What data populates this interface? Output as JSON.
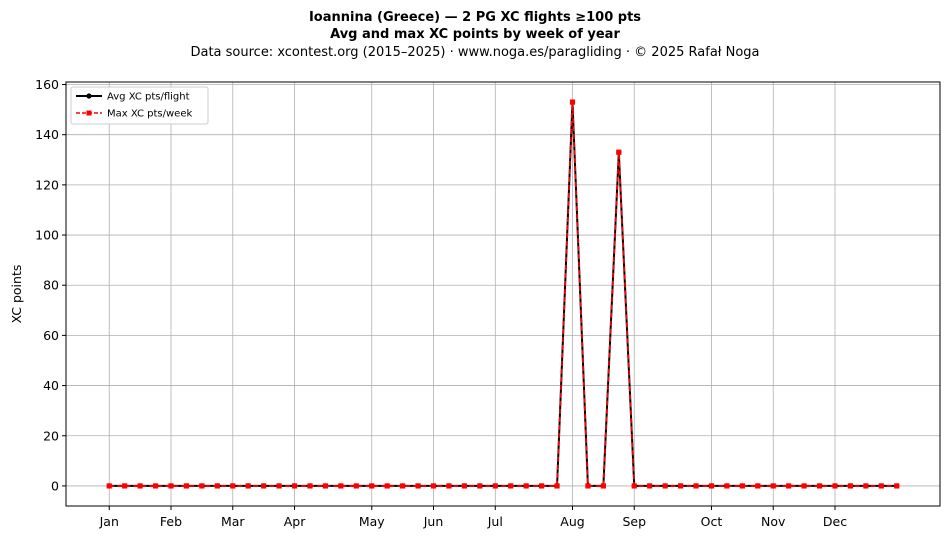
{
  "chart_data": {
    "type": "line",
    "title": "Ioannina (Greece)  —  2 PG XC flights ≥100 pts",
    "subtitle": "Avg and max XC points by week of year",
    "source": "Data source: xcontest.org (2015–2025)  ·  www.noga.es/paragliding  ·  © 2025 Rafał Noga",
    "xlabel": "",
    "ylabel": "XC points",
    "xlim": [
      -1.8,
      54.8
    ],
    "ylim": [
      -8,
      161
    ],
    "yticks": [
      0,
      20,
      40,
      60,
      80,
      100,
      120,
      140,
      160
    ],
    "month_ticks": [
      {
        "label": "Jan",
        "week": 1
      },
      {
        "label": "Feb",
        "week": 5
      },
      {
        "label": "Mar",
        "week": 9
      },
      {
        "label": "Apr",
        "week": 13
      },
      {
        "label": "May",
        "week": 18
      },
      {
        "label": "Jun",
        "week": 22
      },
      {
        "label": "Jul",
        "week": 26
      },
      {
        "label": "Aug",
        "week": 31
      },
      {
        "label": "Sep",
        "week": 35
      },
      {
        "label": "Oct",
        "week": 40
      },
      {
        "label": "Nov",
        "week": 44
      },
      {
        "label": "Dec",
        "week": 48
      }
    ],
    "grid": true,
    "legend_position": "top-left",
    "x": [
      1,
      2,
      3,
      4,
      5,
      6,
      7,
      8,
      9,
      10,
      11,
      12,
      13,
      14,
      15,
      16,
      17,
      18,
      19,
      20,
      21,
      22,
      23,
      24,
      25,
      26,
      27,
      28,
      29,
      30,
      31,
      32,
      33,
      34,
      35,
      36,
      37,
      38,
      39,
      40,
      41,
      42,
      43,
      44,
      45,
      46,
      47,
      48,
      49,
      50,
      51,
      52
    ],
    "series": [
      {
        "name": "Avg XC pts/flight",
        "color": "#000000",
        "style": "solid",
        "marker": "circle",
        "values": [
          0,
          0,
          0,
          0,
          0,
          0,
          0,
          0,
          0,
          0,
          0,
          0,
          0,
          0,
          0,
          0,
          0,
          0,
          0,
          0,
          0,
          0,
          0,
          0,
          0,
          0,
          0,
          0,
          0,
          0,
          153,
          0,
          0,
          133,
          0,
          0,
          0,
          0,
          0,
          0,
          0,
          0,
          0,
          0,
          0,
          0,
          0,
          0,
          0,
          0,
          0,
          0
        ]
      },
      {
        "name": "Max XC pts/week",
        "color": "#ff0000",
        "style": "dashed",
        "marker": "square",
        "values": [
          0,
          0,
          0,
          0,
          0,
          0,
          0,
          0,
          0,
          0,
          0,
          0,
          0,
          0,
          0,
          0,
          0,
          0,
          0,
          0,
          0,
          0,
          0,
          0,
          0,
          0,
          0,
          0,
          0,
          0,
          153,
          0,
          0,
          133,
          0,
          0,
          0,
          0,
          0,
          0,
          0,
          0,
          0,
          0,
          0,
          0,
          0,
          0,
          0,
          0,
          0,
          0
        ]
      }
    ]
  }
}
